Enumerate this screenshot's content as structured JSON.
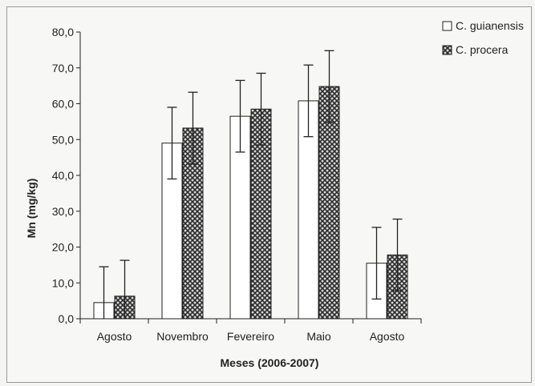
{
  "chart_data": {
    "type": "bar",
    "title": "",
    "xlabel": "Meses (2006-2007)",
    "ylabel": "Mn (mg/kg)",
    "ylim": [
      0,
      80
    ],
    "yticks": [
      "0,0",
      "10,0",
      "20,0",
      "30,0",
      "40,0",
      "50,0",
      "60,0",
      "70,0",
      "80,0"
    ],
    "categories": [
      "Agosto",
      "Novembro",
      "Fevereiro",
      "Maio",
      "Agosto"
    ],
    "legend_position": "top-right",
    "grid": false,
    "series": [
      {
        "name": "C. guianensis",
        "fill": "white",
        "values": [
          4.5,
          49.0,
          56.5,
          60.8,
          15.5
        ],
        "error_low": [
          0.0,
          39.0,
          46.5,
          50.8,
          5.5
        ],
        "error_high": [
          14.5,
          59.0,
          66.5,
          70.8,
          25.5
        ]
      },
      {
        "name": "C. procera",
        "fill": "crosshatch",
        "values": [
          6.3,
          53.2,
          58.5,
          64.8,
          17.8
        ],
        "error_low": [
          0.0,
          43.2,
          48.5,
          54.8,
          7.8
        ],
        "error_high": [
          16.3,
          63.2,
          68.5,
          74.8,
          27.8
        ]
      }
    ],
    "colors": {
      "axis": "#222222",
      "bar_stroke": "#222222",
      "hatch": "#2b2b2b",
      "hatch_bg": "#d8d8d8"
    }
  }
}
